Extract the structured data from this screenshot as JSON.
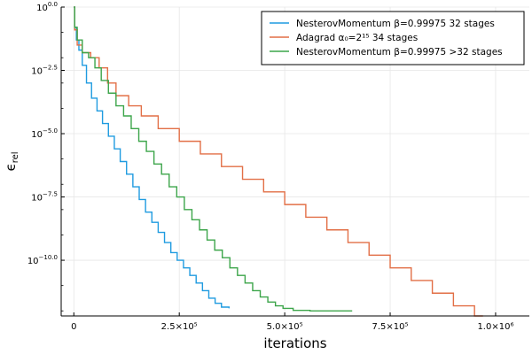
{
  "chart_data": {
    "type": "line",
    "title": "",
    "xlabel": "iterations",
    "ylabel": "ϵ_rel",
    "x_scale": "linear",
    "y_scale": "log10",
    "xlim": [
      -30000,
      1080000
    ],
    "ylim_log10": [
      -12.2,
      0
    ],
    "grid": true,
    "legend_position": "top-right",
    "x_ticks": [
      {
        "value": 0,
        "label": "0"
      },
      {
        "value": 250000,
        "label": "2.5×10⁵"
      },
      {
        "value": 500000,
        "label": "5.0×10⁵"
      },
      {
        "value": 750000,
        "label": "7.5×10⁵"
      },
      {
        "value": 1000000,
        "label": "1.0×10⁶"
      }
    ],
    "y_ticks": [
      {
        "value": 0,
        "base": "10",
        "exp": "0.0"
      },
      {
        "value": -2.5,
        "base": "10",
        "exp": "−2.5"
      },
      {
        "value": -5.0,
        "base": "10",
        "exp": "−5.0"
      },
      {
        "value": -7.5,
        "base": "10",
        "exp": "−7.5"
      },
      {
        "value": -10.0,
        "base": "10",
        "exp": "−10.0"
      }
    ],
    "series": [
      {
        "name": "NesterovMomentum β=0.99975 32 stages",
        "color": "#1f9be0",
        "step": true,
        "x": [
          0,
          2000,
          6000,
          12000,
          20000,
          30000,
          42000,
          55000,
          68000,
          82000,
          96000,
          110000,
          125000,
          140000,
          155000,
          170000,
          185000,
          200000,
          215000,
          230000,
          245000,
          260000,
          275000,
          290000,
          305000,
          320000,
          335000,
          350000,
          368000
        ],
        "y_log10": [
          0,
          -0.8,
          -1.3,
          -1.7,
          -2.3,
          -3.0,
          -3.6,
          -4.1,
          -4.6,
          -5.1,
          -5.6,
          -6.1,
          -6.6,
          -7.1,
          -7.6,
          -8.1,
          -8.5,
          -8.9,
          -9.3,
          -9.7,
          -10.0,
          -10.3,
          -10.6,
          -10.9,
          -11.2,
          -11.5,
          -11.7,
          -11.85,
          -11.9
        ]
      },
      {
        "name": "Adagrad α₀=2¹⁵ 34 stages",
        "color": "#e26f46",
        "step": true,
        "x": [
          0,
          2000,
          8000,
          20000,
          40000,
          60000,
          80000,
          100000,
          130000,
          160000,
          200000,
          250000,
          300000,
          350000,
          400000,
          450000,
          500000,
          550000,
          600000,
          650000,
          700000,
          750000,
          800000,
          850000,
          900000,
          950000,
          970000
        ],
        "y_log10": [
          0,
          -0.9,
          -1.5,
          -1.8,
          -2.0,
          -2.4,
          -3.0,
          -3.5,
          -3.9,
          -4.3,
          -4.8,
          -5.3,
          -5.8,
          -6.3,
          -6.8,
          -7.3,
          -7.8,
          -8.3,
          -8.8,
          -9.3,
          -9.8,
          -10.3,
          -10.8,
          -11.3,
          -11.8,
          -12.2,
          -12.2
        ]
      },
      {
        "name": "NesterovMomentum β=0.99975 >32 stages",
        "color": "#3ca54a",
        "step": true,
        "x": [
          0,
          2000,
          8000,
          20000,
          35000,
          50000,
          65000,
          82000,
          100000,
          118000,
          136000,
          154000,
          172000,
          190000,
          208000,
          226000,
          244000,
          262000,
          280000,
          298000,
          316000,
          334000,
          352000,
          370000,
          388000,
          406000,
          424000,
          442000,
          460000,
          478000,
          496000,
          520000,
          560000,
          660000
        ],
        "y_log10": [
          0,
          -0.8,
          -1.3,
          -1.8,
          -2.0,
          -2.4,
          -2.9,
          -3.4,
          -3.9,
          -4.3,
          -4.8,
          -5.3,
          -5.7,
          -6.2,
          -6.6,
          -7.1,
          -7.5,
          -8.0,
          -8.4,
          -8.8,
          -9.2,
          -9.6,
          -9.9,
          -10.3,
          -10.6,
          -10.9,
          -11.2,
          -11.45,
          -11.65,
          -11.8,
          -11.9,
          -11.98,
          -12.0,
          -12.0
        ]
      }
    ]
  }
}
